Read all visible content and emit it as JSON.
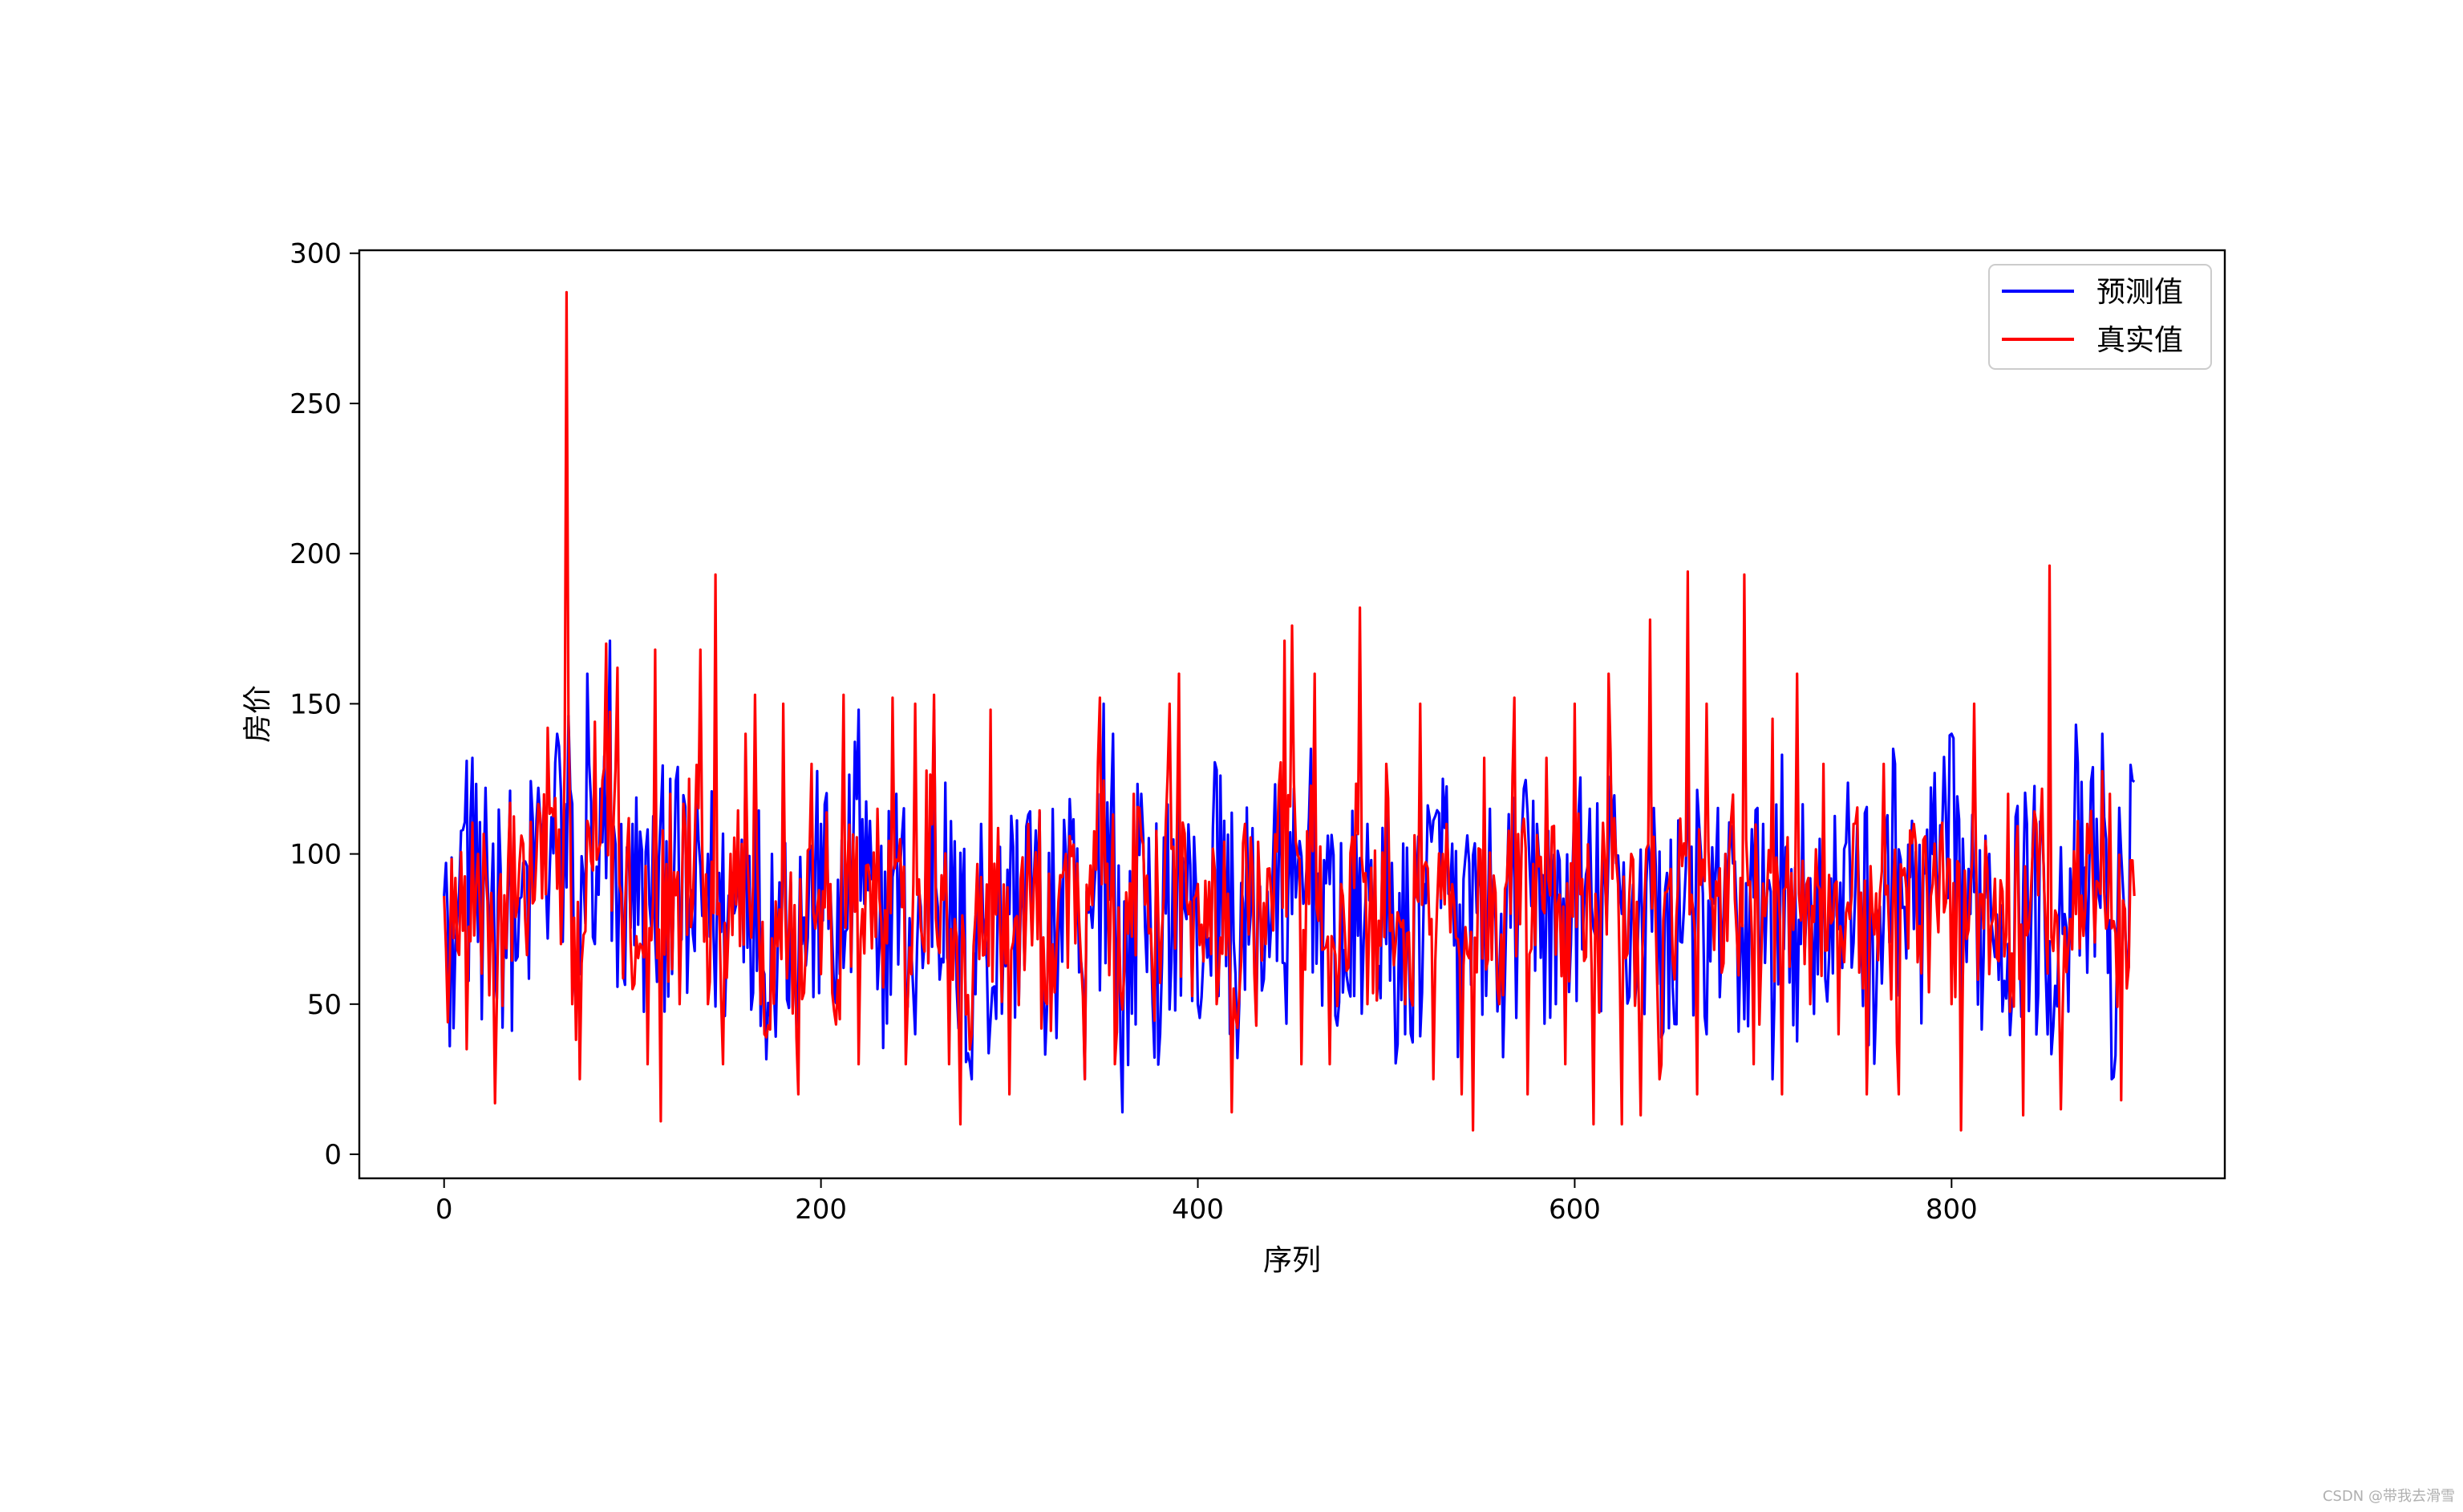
{
  "chart_data": {
    "type": "line",
    "xlabel": "序列",
    "ylabel": "房价",
    "xlim": [
      -45,
      945
    ],
    "ylim": [
      -8,
      301
    ],
    "xticks": [
      0,
      200,
      400,
      600,
      800
    ],
    "yticks": [
      0,
      50,
      100,
      150,
      200,
      250,
      300
    ],
    "legend_position": "top-right",
    "grid": false,
    "n_points": 898,
    "series": [
      {
        "name": "预测值",
        "color": "#0000ff",
        "key_points": [
          [
            0,
            86
          ],
          [
            1,
            97
          ],
          [
            3,
            36
          ],
          [
            5,
            42
          ],
          [
            10,
            108
          ],
          [
            15,
            132
          ],
          [
            20,
            45
          ],
          [
            22,
            122
          ],
          [
            30,
            95
          ],
          [
            40,
            85
          ],
          [
            50,
            122
          ],
          [
            60,
            140
          ],
          [
            66,
            146
          ],
          [
            72,
            60
          ],
          [
            76,
            160
          ],
          [
            80,
            70
          ],
          [
            88,
            171
          ],
          [
            95,
            60
          ],
          [
            100,
            110
          ],
          [
            110,
            75
          ],
          [
            120,
            125
          ],
          [
            130,
            80
          ],
          [
            140,
            100
          ],
          [
            150,
            70
          ],
          [
            160,
            135
          ],
          [
            170,
            60
          ],
          [
            180,
            100
          ],
          [
            190,
            70
          ],
          [
            200,
            110
          ],
          [
            210,
            60
          ],
          [
            220,
            148
          ],
          [
            230,
            55
          ],
          [
            240,
            120
          ],
          [
            250,
            40
          ],
          [
            260,
            148
          ],
          [
            270,
            70
          ],
          [
            280,
            25
          ],
          [
            285,
            110
          ],
          [
            290,
            45
          ],
          [
            300,
            80
          ],
          [
            310,
            113
          ],
          [
            320,
            50
          ],
          [
            330,
            100
          ],
          [
            340,
            25
          ],
          [
            350,
            150
          ],
          [
            355,
            140
          ],
          [
            360,
            14
          ],
          [
            370,
            120
          ],
          [
            380,
            40
          ],
          [
            390,
            130
          ],
          [
            400,
            50
          ],
          [
            410,
            128
          ],
          [
            420,
            60
          ],
          [
            430,
            70
          ],
          [
            440,
            100
          ],
          [
            450,
            80
          ],
          [
            460,
            135
          ],
          [
            470,
            90
          ],
          [
            480,
            55
          ],
          [
            490,
            110
          ],
          [
            500,
            70
          ],
          [
            510,
            40
          ],
          [
            520,
            90
          ],
          [
            530,
            125
          ],
          [
            540,
            45
          ],
          [
            550,
            100
          ],
          [
            560,
            60
          ],
          [
            570,
            85
          ],
          [
            580,
            110
          ],
          [
            590,
            50
          ],
          [
            600,
            120
          ],
          [
            610,
            75
          ],
          [
            620,
            110
          ],
          [
            630,
            80
          ],
          [
            640,
            98
          ],
          [
            650,
            42
          ],
          [
            660,
            130
          ],
          [
            670,
            40
          ],
          [
            680,
            100
          ],
          [
            690,
            45
          ],
          [
            700,
            110
          ],
          [
            705,
            25
          ],
          [
            710,
            133
          ],
          [
            720,
            70
          ],
          [
            730,
            105
          ],
          [
            740,
            75
          ],
          [
            750,
            110
          ],
          [
            760,
            50
          ],
          [
            770,
            130
          ],
          [
            780,
            75
          ],
          [
            790,
            100
          ],
          [
            800,
            140
          ],
          [
            810,
            80
          ],
          [
            820,
            100
          ],
          [
            830,
            70
          ],
          [
            840,
            110
          ],
          [
            850,
            60
          ],
          [
            860,
            80
          ],
          [
            866,
            143
          ],
          [
            870,
            80
          ],
          [
            880,
            140
          ],
          [
            885,
            25
          ],
          [
            890,
            100
          ],
          [
            897,
            124
          ]
        ]
      },
      {
        "name": "真实值",
        "color": "#ff0000",
        "key_points": [
          [
            0,
            86
          ],
          [
            2,
            44
          ],
          [
            6,
            92
          ],
          [
            12,
            35
          ],
          [
            18,
            100
          ],
          [
            27,
            17
          ],
          [
            35,
            117
          ],
          [
            45,
            85
          ],
          [
            55,
            142
          ],
          [
            62,
            70
          ],
          [
            65,
            287
          ],
          [
            68,
            50
          ],
          [
            72,
            25
          ],
          [
            80,
            144
          ],
          [
            86,
            170
          ],
          [
            92,
            162
          ],
          [
            100,
            55
          ],
          [
            108,
            30
          ],
          [
            112,
            168
          ],
          [
            115,
            11
          ],
          [
            120,
            120
          ],
          [
            125,
            50
          ],
          [
            130,
            125
          ],
          [
            136,
            168
          ],
          [
            140,
            50
          ],
          [
            144,
            193
          ],
          [
            148,
            30
          ],
          [
            152,
            100
          ],
          [
            160,
            140
          ],
          [
            165,
            153
          ],
          [
            170,
            40
          ],
          [
            180,
            150
          ],
          [
            188,
            20
          ],
          [
            195,
            130
          ],
          [
            200,
            60
          ],
          [
            210,
            45
          ],
          [
            212,
            153
          ],
          [
            220,
            30
          ],
          [
            230,
            115
          ],
          [
            238,
            152
          ],
          [
            245,
            30
          ],
          [
            250,
            150
          ],
          [
            260,
            153
          ],
          [
            268,
            30
          ],
          [
            274,
            10
          ],
          [
            280,
            40
          ],
          [
            290,
            148
          ],
          [
            300,
            20
          ],
          [
            310,
            110
          ],
          [
            320,
            50
          ],
          [
            330,
            100
          ],
          [
            340,
            25
          ],
          [
            348,
            152
          ],
          [
            356,
            30
          ],
          [
            366,
            120
          ],
          [
            375,
            75
          ],
          [
            385,
            150
          ],
          [
            390,
            160
          ],
          [
            400,
            90
          ],
          [
            410,
            50
          ],
          [
            418,
            14
          ],
          [
            425,
            110
          ],
          [
            436,
            70
          ],
          [
            446,
            171
          ],
          [
            450,
            176
          ],
          [
            455,
            30
          ],
          [
            462,
            160
          ],
          [
            470,
            30
          ],
          [
            476,
            90
          ],
          [
            486,
            182
          ],
          [
            490,
            50
          ],
          [
            500,
            130
          ],
          [
            510,
            50
          ],
          [
            518,
            150
          ],
          [
            525,
            25
          ],
          [
            530,
            100
          ],
          [
            540,
            20
          ],
          [
            546,
            8
          ],
          [
            552,
            132
          ],
          [
            560,
            50
          ],
          [
            568,
            152
          ],
          [
            575,
            20
          ],
          [
            585,
            132
          ],
          [
            595,
            30
          ],
          [
            600,
            150
          ],
          [
            610,
            10
          ],
          [
            618,
            160
          ],
          [
            625,
            10
          ],
          [
            630,
            100
          ],
          [
            635,
            13
          ],
          [
            640,
            178
          ],
          [
            645,
            25
          ],
          [
            650,
            90
          ],
          [
            660,
            194
          ],
          [
            665,
            20
          ],
          [
            670,
            150
          ],
          [
            680,
            100
          ],
          [
            690,
            193
          ],
          [
            695,
            30
          ],
          [
            705,
            145
          ],
          [
            710,
            20
          ],
          [
            718,
            160
          ],
          [
            725,
            50
          ],
          [
            732,
            130
          ],
          [
            740,
            40
          ],
          [
            748,
            110
          ],
          [
            755,
            20
          ],
          [
            764,
            130
          ],
          [
            772,
            20
          ],
          [
            780,
            110
          ],
          [
            790,
            90
          ],
          [
            800,
            50
          ],
          [
            805,
            8
          ],
          [
            812,
            150
          ],
          [
            820,
            60
          ],
          [
            830,
            120
          ],
          [
            838,
            13
          ],
          [
            845,
            110
          ],
          [
            852,
            196
          ],
          [
            858,
            15
          ],
          [
            866,
            80
          ],
          [
            872,
            110
          ],
          [
            878,
            90
          ],
          [
            884,
            120
          ],
          [
            890,
            18
          ],
          [
            897,
            86
          ]
        ]
      }
    ]
  },
  "watermark": "CSDN @带我去滑雪"
}
